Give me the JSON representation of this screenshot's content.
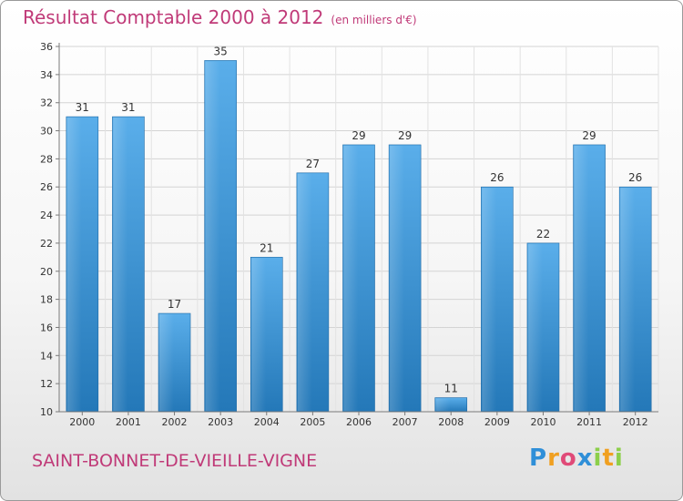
{
  "header": {
    "title": "Résultat Comptable 2000 à 2012",
    "subtitle": "(en milliers d'€)"
  },
  "footer": {
    "town": "SAINT-BONNET-DE-VIEILLE-VIGNE",
    "logo": "Proxiti"
  },
  "colors": {
    "title": "#c03a78",
    "bar_top": "#5aaeea",
    "bar_bottom": "#2478b8"
  },
  "chart_data": {
    "type": "bar",
    "categories": [
      "2000",
      "2001",
      "2002",
      "2003",
      "2004",
      "2005",
      "2006",
      "2007",
      "2008",
      "2009",
      "2010",
      "2011",
      "2012"
    ],
    "values": [
      31,
      31,
      17,
      35,
      21,
      27,
      29,
      29,
      11,
      26,
      22,
      29,
      26
    ],
    "ylim": [
      10,
      36
    ],
    "yticks": [
      10,
      12,
      14,
      16,
      18,
      20,
      22,
      24,
      26,
      28,
      30,
      32,
      34,
      36
    ],
    "grid": true,
    "legend": "none"
  }
}
